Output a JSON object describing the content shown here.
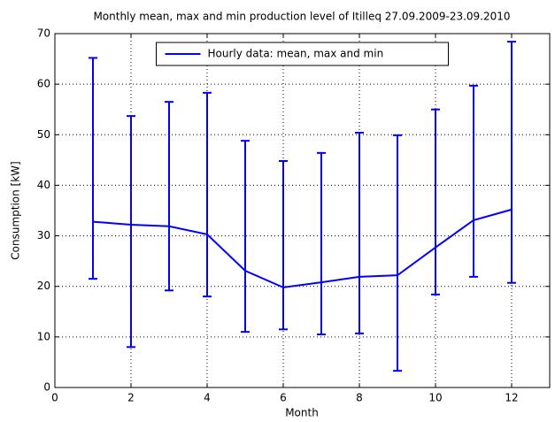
{
  "chart_data": {
    "type": "errorbar",
    "title": "Monthly mean, max and min production level of Itilleq 27.09.2009-23.09.2010",
    "xlabel": "Month",
    "ylabel": "Consumption [kW]",
    "x": [
      1,
      2,
      3,
      4,
      5,
      6,
      7,
      8,
      9,
      10,
      11,
      12
    ],
    "series": [
      {
        "name": "Hourly data: mean, max and min",
        "color": "#0000ff",
        "values": [
          32.8,
          32.2,
          31.9,
          30.3,
          23.1,
          19.8,
          20.8,
          21.9,
          22.2,
          27.7,
          33.1,
          35.2
        ],
        "max": [
          65.2,
          53.7,
          56.5,
          58.3,
          48.8,
          44.8,
          46.4,
          50.4,
          49.9,
          55.0,
          59.7,
          68.4
        ],
        "min": [
          21.5,
          8.0,
          19.2,
          18.0,
          11.0,
          11.5,
          10.5,
          10.7,
          3.3,
          18.4,
          21.9,
          20.7
        ]
      }
    ],
    "xlim": [
      0,
      13
    ],
    "xticks": [
      0,
      2,
      4,
      6,
      8,
      10,
      12
    ],
    "ylim": [
      0,
      70
    ],
    "yticks": [
      0,
      10,
      20,
      30,
      40,
      50,
      60,
      70
    ],
    "grid": true,
    "legend": "north"
  }
}
